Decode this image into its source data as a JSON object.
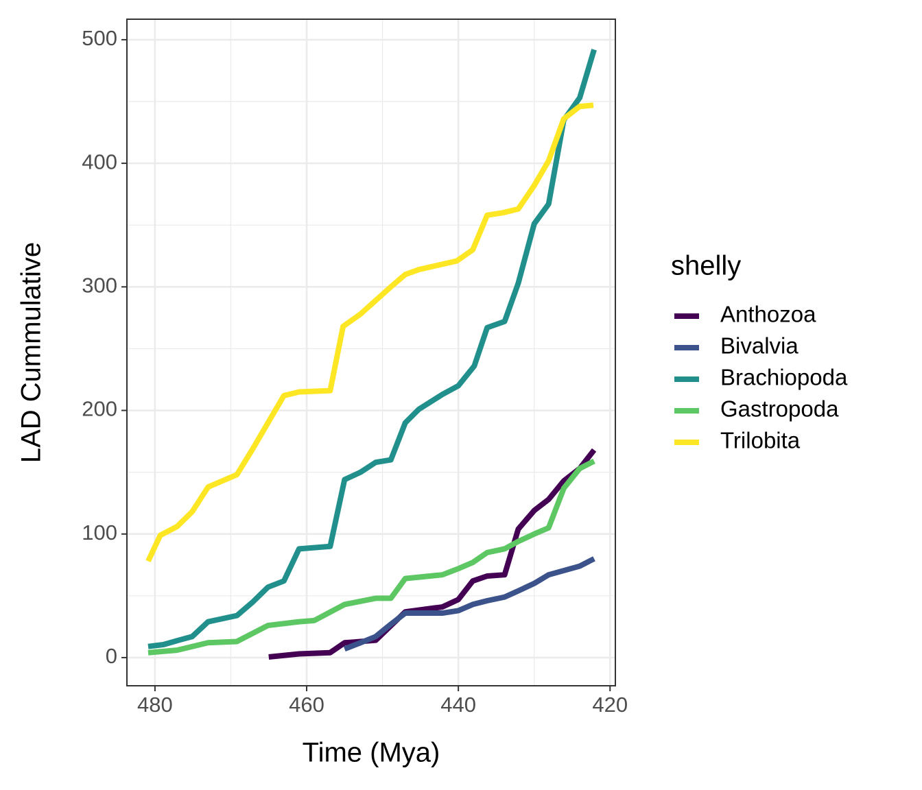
{
  "chart_data": {
    "type": "line",
    "x_label": "Time (Mya)",
    "y_label": "LAD Cummulative",
    "legend_title": "shelly",
    "xlim": [
      483.7,
      419.3
    ],
    "xticks": [
      480,
      460,
      440,
      420
    ],
    "ylim": [
      -22.8,
      516.6
    ],
    "yticks": [
      0,
      100,
      200,
      300,
      400,
      500
    ],
    "grid": true,
    "legend_position": "right",
    "series": [
      {
        "name": "Anthozoa",
        "color": "#440154",
        "x": [
          465,
          461,
          456.9,
          455,
          450.9,
          447,
          442.1,
          440,
          438.1,
          436.2,
          433.9,
          432.1,
          430,
          428.1,
          426.1,
          424,
          422.1
        ],
        "values": [
          0.5,
          3,
          4,
          12,
          14,
          37,
          41,
          47,
          62,
          66,
          67,
          104,
          119,
          128,
          143,
          153,
          168
        ]
      },
      {
        "name": "Bivalvia",
        "color": "#3b528b",
        "x": [
          455,
          452.9,
          450.9,
          448.9,
          447,
          442.1,
          440,
          438.1,
          436.2,
          433.9,
          432.1,
          430,
          428.1,
          424,
          422.1
        ],
        "values": [
          7,
          12,
          17,
          27,
          36,
          36,
          38,
          43,
          46,
          49,
          54,
          60,
          67,
          74,
          80
        ]
      },
      {
        "name": "Brachiopoda",
        "color": "#21908c",
        "x": [
          480.9,
          478.9,
          476.9,
          475.1,
          473,
          469.2,
          467.1,
          465.1,
          463,
          461,
          456.9,
          455,
          452.9,
          450.9,
          448.9,
          447,
          445.2,
          442.1,
          440,
          437.9,
          436.2,
          433.9,
          432.1,
          430,
          428.1,
          426.1,
          424,
          422.1
        ],
        "values": [
          9,
          10.5,
          14,
          17,
          29,
          34,
          45,
          57,
          62,
          88,
          90,
          144,
          150,
          158,
          160,
          190,
          201,
          213,
          220,
          236,
          267,
          272,
          303,
          351,
          367,
          435,
          453,
          492
        ]
      },
      {
        "name": "Gastropoda",
        "color": "#5dc863",
        "x": [
          480.9,
          477.1,
          473,
          469.2,
          465.1,
          461,
          459,
          455,
          450.9,
          448.9,
          447,
          442.1,
          440,
          438.1,
          436.2,
          433.9,
          432.1,
          430,
          428.1,
          426.1,
          424,
          422.1
        ],
        "values": [
          4,
          6,
          12,
          13,
          26,
          29,
          30,
          43,
          48,
          48,
          64,
          67,
          72,
          77,
          85,
          88,
          94,
          100,
          105,
          137,
          153,
          159
        ]
      },
      {
        "name": "Trilobita",
        "color": "#fde725",
        "x": [
          480.9,
          479.3,
          477.1,
          475.1,
          473,
          469.2,
          467.1,
          465.1,
          463,
          461,
          456.9,
          455.2,
          452.9,
          450.9,
          448.9,
          447,
          445.2,
          440.2,
          438.1,
          436.2,
          434.1,
          432.1,
          430,
          428.1,
          426.1,
          424,
          422.2
        ],
        "values": [
          78,
          99,
          106,
          118,
          138,
          148,
          169,
          190,
          212,
          215,
          216,
          268,
          278,
          289,
          300,
          310,
          314,
          321,
          330,
          358,
          360,
          363,
          382,
          402,
          436,
          446,
          447
        ]
      }
    ]
  }
}
